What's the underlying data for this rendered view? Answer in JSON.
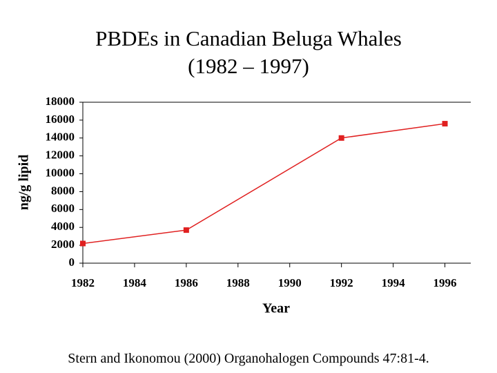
{
  "chart_data": {
    "type": "line",
    "title": "PBDEs in Canadian Beluga Whales (1982 – 1997)",
    "x_label": "Year",
    "y_label": "ng/g lipid",
    "source": "Stern and Ikonomou (2000) Organohalogen Compounds 47:81-4.",
    "x": [
      1982,
      1986,
      1992,
      1996
    ],
    "series": [
      {
        "name": "PBDEs",
        "color": "#e02020",
        "values": [
          2200,
          3700,
          14000,
          15600
        ]
      }
    ],
    "xlim": [
      1982,
      1997
    ],
    "xticks": [
      1982,
      1984,
      1986,
      1988,
      1990,
      1992,
      1994,
      1996
    ],
    "ylim": [
      0,
      18000
    ],
    "yticks": [
      0,
      2000,
      4000,
      6000,
      8000,
      10000,
      12000,
      14000,
      16000,
      18000
    ],
    "grid": false
  }
}
